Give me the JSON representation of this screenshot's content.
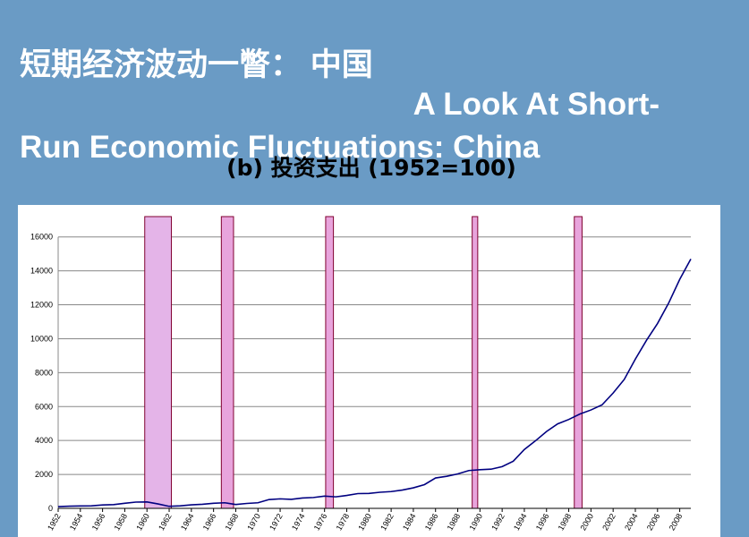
{
  "slide": {
    "title": [
      "短期经济波动一瞥： 中国",
      "A Look At Short-",
      "Run Economic Fluctuations: China"
    ]
  },
  "chart_data": {
    "type": "line",
    "title": "(b) 投资支出 (1952=100)",
    "x": [
      1952,
      1953,
      1954,
      1955,
      1956,
      1957,
      1958,
      1959,
      1960,
      1961,
      1962,
      1963,
      1964,
      1965,
      1966,
      1967,
      1968,
      1969,
      1970,
      1971,
      1972,
      1973,
      1974,
      1975,
      1976,
      1977,
      1978,
      1979,
      1980,
      1981,
      1982,
      1983,
      1984,
      1985,
      1986,
      1987,
      1988,
      1989,
      1990,
      1991,
      1992,
      1993,
      1994,
      1995,
      1996,
      1997,
      1998,
      1999,
      2000,
      2001,
      2002,
      2003,
      2004,
      2005,
      2006,
      2007,
      2008,
      2009
    ],
    "series": [
      {
        "color": "#000080",
        "values": [
          100,
          130,
          140,
          150,
          200,
          220,
          300,
          370,
          380,
          260,
          120,
          150,
          210,
          240,
          300,
          330,
          230,
          290,
          330,
          520,
          560,
          530,
          610,
          640,
          720,
          680,
          760,
          870,
          880,
          950,
          990,
          1080,
          1210,
          1400,
          1790,
          1890,
          2030,
          2230,
          2280,
          2310,
          2460,
          2780,
          3470,
          3980,
          4530,
          4980,
          5240,
          5560,
          5800,
          6100,
          6800,
          7600,
          8800,
          9900,
          10900,
          12100,
          13500,
          14700
        ]
      }
    ],
    "shading": [
      {
        "x0": 1959.8,
        "x1": 1962.2,
        "color": "#e4b4e8"
      },
      {
        "x0": 1966.7,
        "x1": 1967.8,
        "color": "#e8a4dc"
      },
      {
        "x0": 1976.1,
        "x1": 1976.8,
        "color": "#e8a4dc"
      },
      {
        "x0": 1989.3,
        "x1": 1989.8,
        "color": "#e8a4dc"
      },
      {
        "x0": 1998.5,
        "x1": 1999.2,
        "color": "#e8a4dc"
      }
    ],
    "xlim": [
      1952,
      2009
    ],
    "ylim": [
      0,
      17200
    ],
    "xticks": [
      1952,
      1954,
      1956,
      1958,
      1960,
      1962,
      1964,
      1966,
      1968,
      1970,
      1972,
      1974,
      1976,
      1978,
      1980,
      1982,
      1984,
      1986,
      1988,
      1990,
      1992,
      1994,
      1996,
      1998,
      2000,
      2002,
      2004,
      2006,
      2008
    ],
    "yticks": [
      0,
      2000,
      4000,
      6000,
      8000,
      10000,
      12000,
      14000,
      16000
    ],
    "grid": true
  }
}
